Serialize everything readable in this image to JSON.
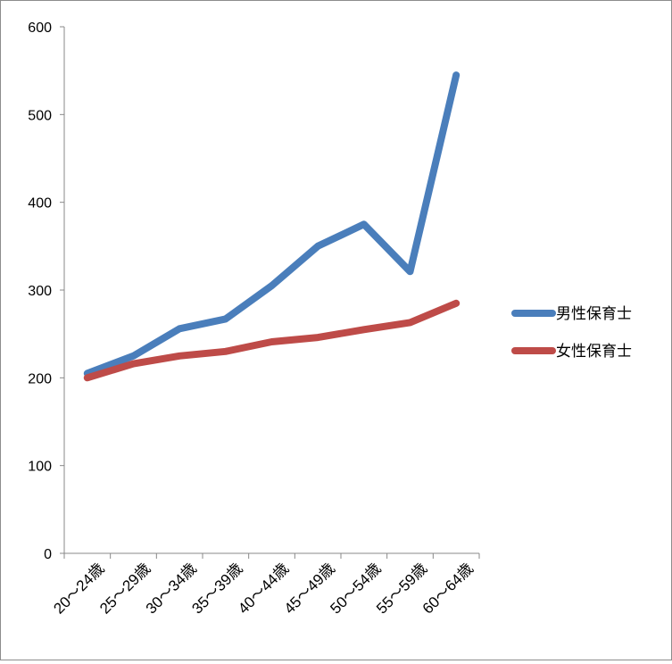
{
  "chart_data": {
    "type": "line",
    "title": "",
    "xlabel": "",
    "ylabel": "",
    "categories": [
      "20～24歳",
      "25～29歳",
      "30～34歳",
      "35～39歳",
      "40～44歳",
      "45～49歳",
      "50～54歳",
      "55～59歳",
      "60～64歳"
    ],
    "y_ticks": [
      "0",
      "100",
      "200",
      "300",
      "400",
      "500",
      "600"
    ],
    "ylim": [
      0,
      600
    ],
    "grid": false,
    "legend_position": "right",
    "series": [
      {
        "name": "男性保育士",
        "color": "#4a7ebb",
        "values": [
          205,
          225,
          256,
          267,
          305,
          350,
          375,
          321,
          545
        ]
      },
      {
        "name": "女性保育士",
        "color": "#be4b48",
        "values": [
          200,
          216,
          225,
          230,
          241,
          246,
          255,
          263,
          285
        ]
      }
    ]
  }
}
